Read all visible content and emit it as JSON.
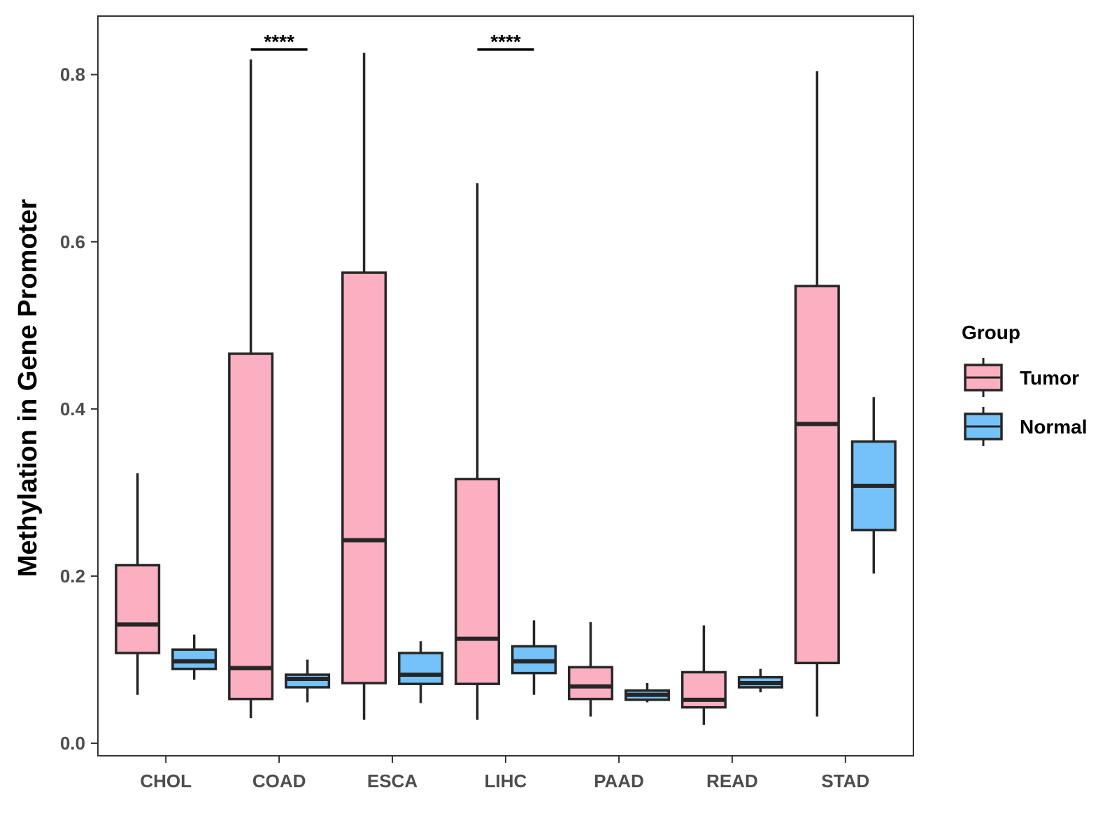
{
  "chart_data": {
    "type": "boxplot",
    "title": "",
    "xlabel": "",
    "ylabel": "Methylation in Gene Promoter",
    "ylim": [
      -0.015,
      0.87
    ],
    "yticks": [
      0.0,
      0.2,
      0.4,
      0.6,
      0.8
    ],
    "ytick_labels": [
      "0.0",
      "0.2",
      "0.4",
      "0.6",
      "0.8"
    ],
    "grid": false,
    "legend_position": "right",
    "legend_title": "Group",
    "categories": [
      "CHOL",
      "COAD",
      "ESCA",
      "LIHC",
      "PAAD",
      "READ",
      "STAD"
    ],
    "series": [
      {
        "name": "Tumor",
        "color": "#fcafc1",
        "boxes": [
          {
            "min": 0.058,
            "q1": 0.108,
            "median": 0.142,
            "q3": 0.213,
            "max": 0.323
          },
          {
            "min": 0.03,
            "q1": 0.053,
            "median": 0.09,
            "q3": 0.466,
            "max": 0.818
          },
          {
            "min": 0.028,
            "q1": 0.072,
            "median": 0.243,
            "q3": 0.563,
            "max": 0.826
          },
          {
            "min": 0.028,
            "q1": 0.071,
            "median": 0.125,
            "q3": 0.316,
            "max": 0.67
          },
          {
            "min": 0.032,
            "q1": 0.053,
            "median": 0.068,
            "q3": 0.091,
            "max": 0.145
          },
          {
            "min": 0.022,
            "q1": 0.043,
            "median": 0.052,
            "q3": 0.085,
            "max": 0.141
          },
          {
            "min": 0.032,
            "q1": 0.096,
            "median": 0.382,
            "q3": 0.547,
            "max": 0.804
          }
        ]
      },
      {
        "name": "Normal",
        "color": "#74c2f8",
        "boxes": [
          {
            "min": 0.076,
            "q1": 0.089,
            "median": 0.098,
            "q3": 0.112,
            "max": 0.13
          },
          {
            "min": 0.049,
            "q1": 0.067,
            "median": 0.077,
            "q3": 0.082,
            "max": 0.1
          },
          {
            "min": 0.048,
            "q1": 0.071,
            "median": 0.082,
            "q3": 0.108,
            "max": 0.122
          },
          {
            "min": 0.058,
            "q1": 0.084,
            "median": 0.098,
            "q3": 0.116,
            "max": 0.147
          },
          {
            "min": 0.049,
            "q1": 0.052,
            "median": 0.058,
            "q3": 0.063,
            "max": 0.072
          },
          {
            "min": 0.061,
            "q1": 0.067,
            "median": 0.072,
            "q3": 0.079,
            "max": 0.089
          },
          {
            "min": 0.203,
            "q1": 0.255,
            "median": 0.308,
            "q3": 0.361,
            "max": 0.414
          }
        ]
      }
    ],
    "annotations": [
      {
        "category": "COAD",
        "text": "****",
        "y": 0.83
      },
      {
        "category": "LIHC",
        "text": "****",
        "y": 0.83
      }
    ]
  }
}
